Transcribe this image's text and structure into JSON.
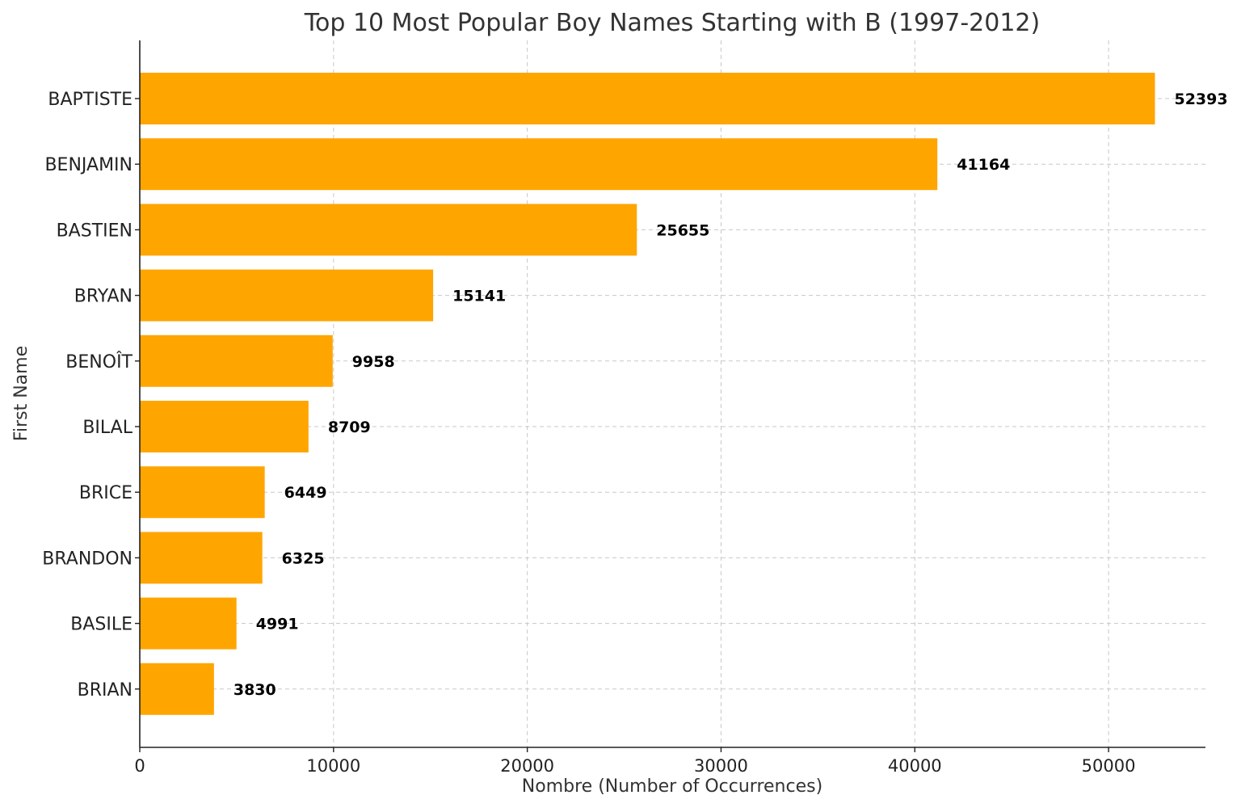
{
  "chart_data": {
    "type": "bar",
    "orientation": "horizontal",
    "title": "Top 10 Most Popular Boy Names Starting with B (1997-2012)",
    "xlabel": "Nombre (Number of Occurrences)",
    "ylabel": "First Name",
    "categories": [
      "BAPTISTE",
      "BENJAMIN",
      "BASTIEN",
      "BRYAN",
      "BENOÎT",
      "BILAL",
      "BRICE",
      "BRANDON",
      "BASILE",
      "BRIAN"
    ],
    "values": [
      52393,
      41164,
      25655,
      15141,
      9958,
      8709,
      6449,
      6325,
      4991,
      3830
    ],
    "xlim": [
      0,
      55000
    ],
    "xticks": [
      0,
      10000,
      20000,
      30000,
      40000,
      50000
    ],
    "grid": true,
    "bar_color": "#FFA500"
  }
}
